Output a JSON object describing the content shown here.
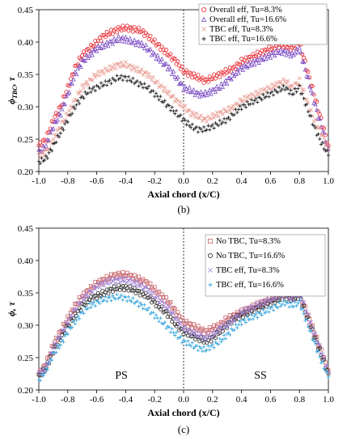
{
  "charts": [
    {
      "caption": "(b)",
      "ylabel_main": "ϕ",
      "ylabel_sub": "TBC",
      "ylabel_suffix": ", τ",
      "region_labels": []
    },
    {
      "caption": "(c)",
      "ylabel_main": "ϕ, τ",
      "ylabel_sub": "",
      "ylabel_suffix": "",
      "region_labels": [
        "PS",
        "SS"
      ]
    }
  ],
  "chart_data": [
    {
      "type": "scatter",
      "xlabel": "Axial chord (x/C)",
      "xlim": [
        -1.0,
        1.0
      ],
      "ylim": [
        0.2,
        0.45
      ],
      "xticks": [
        "-1.0",
        "-0.8",
        "-0.6",
        "-0.4",
        "-0.2",
        "0.0",
        "0.2",
        "0.4",
        "0.6",
        "0.8",
        "1.0"
      ],
      "yticks": [
        "0.20",
        "0.25",
        "0.30",
        "0.35",
        "0.40",
        "0.45"
      ],
      "grid": false,
      "legend_position": "top-right",
      "series": [
        {
          "name": "Overall eff, Tu=8.3%",
          "marker": "circle",
          "color": "#e8222a",
          "x": [
            -1.0,
            -0.95,
            -0.9,
            -0.85,
            -0.8,
            -0.75,
            -0.7,
            -0.65,
            -0.6,
            -0.55,
            -0.5,
            -0.45,
            -0.4,
            -0.35,
            -0.3,
            -0.25,
            -0.2,
            -0.15,
            -0.1,
            -0.05,
            0.0,
            0.05,
            0.1,
            0.15,
            0.2,
            0.25,
            0.3,
            0.35,
            0.4,
            0.45,
            0.5,
            0.55,
            0.6,
            0.65,
            0.7,
            0.75,
            0.8,
            0.85,
            0.9,
            0.95,
            1.0
          ],
          "y": [
            0.24,
            0.25,
            0.28,
            0.3,
            0.33,
            0.36,
            0.38,
            0.39,
            0.4,
            0.41,
            0.415,
            0.42,
            0.422,
            0.42,
            0.418,
            0.41,
            0.4,
            0.39,
            0.38,
            0.37,
            0.355,
            0.35,
            0.345,
            0.34,
            0.345,
            0.35,
            0.355,
            0.36,
            0.37,
            0.375,
            0.38,
            0.385,
            0.39,
            0.395,
            0.395,
            0.39,
            0.4,
            0.36,
            0.32,
            0.28,
            0.24
          ]
        },
        {
          "name": "Overall eff, Tu=16.6%",
          "marker": "triangle",
          "color": "#7a4bc4",
          "x": [
            -1.0,
            -0.95,
            -0.9,
            -0.85,
            -0.8,
            -0.75,
            -0.7,
            -0.65,
            -0.6,
            -0.55,
            -0.5,
            -0.45,
            -0.4,
            -0.35,
            -0.3,
            -0.25,
            -0.2,
            -0.15,
            -0.1,
            -0.05,
            0.0,
            0.05,
            0.1,
            0.15,
            0.2,
            0.25,
            0.3,
            0.35,
            0.4,
            0.45,
            0.5,
            0.55,
            0.6,
            0.65,
            0.7,
            0.75,
            0.8,
            0.85,
            0.9,
            0.95,
            1.0
          ],
          "y": [
            0.23,
            0.24,
            0.27,
            0.29,
            0.32,
            0.35,
            0.37,
            0.38,
            0.39,
            0.395,
            0.4,
            0.405,
            0.405,
            0.4,
            0.398,
            0.39,
            0.38,
            0.37,
            0.36,
            0.345,
            0.33,
            0.325,
            0.32,
            0.32,
            0.325,
            0.33,
            0.34,
            0.35,
            0.36,
            0.365,
            0.37,
            0.375,
            0.38,
            0.385,
            0.385,
            0.38,
            0.39,
            0.35,
            0.31,
            0.27,
            0.235
          ]
        },
        {
          "name": "TBC eff, Tu=8.3%",
          "marker": "x",
          "color": "#e89a90",
          "x": [
            -1.0,
            -0.95,
            -0.9,
            -0.85,
            -0.8,
            -0.75,
            -0.7,
            -0.65,
            -0.6,
            -0.55,
            -0.5,
            -0.45,
            -0.4,
            -0.35,
            -0.3,
            -0.25,
            -0.2,
            -0.15,
            -0.1,
            -0.05,
            0.0,
            0.05,
            0.1,
            0.15,
            0.2,
            0.25,
            0.3,
            0.35,
            0.4,
            0.45,
            0.5,
            0.55,
            0.6,
            0.65,
            0.7,
            0.75,
            0.8,
            0.85,
            0.9,
            0.95,
            1.0
          ],
          "y": [
            0.225,
            0.23,
            0.25,
            0.27,
            0.29,
            0.31,
            0.33,
            0.34,
            0.35,
            0.355,
            0.36,
            0.365,
            0.365,
            0.36,
            0.355,
            0.35,
            0.34,
            0.33,
            0.32,
            0.31,
            0.3,
            0.29,
            0.285,
            0.28,
            0.285,
            0.29,
            0.295,
            0.3,
            0.31,
            0.315,
            0.32,
            0.325,
            0.33,
            0.335,
            0.34,
            0.33,
            0.34,
            0.31,
            0.28,
            0.26,
            0.235
          ]
        },
        {
          "name": "TBC eff, Tu=16.6%",
          "marker": "plus",
          "color": "#222222",
          "x": [
            -1.0,
            -0.95,
            -0.9,
            -0.85,
            -0.8,
            -0.75,
            -0.7,
            -0.65,
            -0.6,
            -0.55,
            -0.5,
            -0.45,
            -0.4,
            -0.35,
            -0.3,
            -0.25,
            -0.2,
            -0.15,
            -0.1,
            -0.05,
            0.0,
            0.05,
            0.1,
            0.15,
            0.2,
            0.25,
            0.3,
            0.35,
            0.4,
            0.45,
            0.5,
            0.55,
            0.6,
            0.65,
            0.7,
            0.75,
            0.8,
            0.85,
            0.9,
            0.95,
            1.0
          ],
          "y": [
            0.215,
            0.22,
            0.24,
            0.26,
            0.28,
            0.3,
            0.315,
            0.325,
            0.33,
            0.335,
            0.34,
            0.345,
            0.345,
            0.34,
            0.335,
            0.33,
            0.32,
            0.31,
            0.3,
            0.29,
            0.28,
            0.27,
            0.265,
            0.265,
            0.27,
            0.275,
            0.28,
            0.29,
            0.3,
            0.305,
            0.31,
            0.315,
            0.32,
            0.325,
            0.33,
            0.32,
            0.33,
            0.3,
            0.27,
            0.245,
            0.225
          ]
        }
      ]
    },
    {
      "type": "scatter",
      "xlabel": "Axial chord (x/C)",
      "xlim": [
        -1.0,
        1.0
      ],
      "ylim": [
        0.2,
        0.45
      ],
      "xticks": [
        "-1.0",
        "-0.8",
        "-0.6",
        "-0.4",
        "-0.2",
        "0.0",
        "0.2",
        "0.4",
        "0.6",
        "0.8",
        "1.0"
      ],
      "yticks": [
        "0.20",
        "0.25",
        "0.30",
        "0.35",
        "0.40",
        "0.45"
      ],
      "grid": false,
      "legend_position": "top-right",
      "series": [
        {
          "name": "No TBC, Tu=8.3%",
          "marker": "square",
          "color": "#c9666a",
          "x": [
            -1.0,
            -0.95,
            -0.9,
            -0.85,
            -0.8,
            -0.75,
            -0.7,
            -0.65,
            -0.6,
            -0.55,
            -0.5,
            -0.45,
            -0.4,
            -0.35,
            -0.3,
            -0.25,
            -0.2,
            -0.15,
            -0.1,
            -0.05,
            0.0,
            0.05,
            0.1,
            0.15,
            0.2,
            0.25,
            0.3,
            0.35,
            0.4,
            0.45,
            0.5,
            0.55,
            0.6,
            0.65,
            0.7,
            0.75,
            0.8,
            0.85,
            0.9,
            0.95,
            1.0
          ],
          "y": [
            0.225,
            0.24,
            0.27,
            0.29,
            0.31,
            0.33,
            0.345,
            0.355,
            0.365,
            0.37,
            0.375,
            0.378,
            0.378,
            0.375,
            0.37,
            0.365,
            0.355,
            0.345,
            0.335,
            0.32,
            0.305,
            0.3,
            0.295,
            0.29,
            0.295,
            0.3,
            0.31,
            0.315,
            0.32,
            0.325,
            0.33,
            0.335,
            0.34,
            0.345,
            0.35,
            0.345,
            0.35,
            0.32,
            0.29,
            0.26,
            0.23
          ]
        },
        {
          "name": "No TBC, Tu=16.6%",
          "marker": "circle",
          "color": "#222222",
          "x": [
            -1.0,
            -0.95,
            -0.9,
            -0.85,
            -0.8,
            -0.75,
            -0.7,
            -0.65,
            -0.6,
            -0.55,
            -0.5,
            -0.45,
            -0.4,
            -0.35,
            -0.3,
            -0.25,
            -0.2,
            -0.15,
            -0.1,
            -0.05,
            0.0,
            0.05,
            0.1,
            0.15,
            0.2,
            0.25,
            0.3,
            0.35,
            0.4,
            0.45,
            0.5,
            0.55,
            0.6,
            0.65,
            0.7,
            0.75,
            0.8,
            0.85,
            0.9,
            0.95,
            1.0
          ],
          "y": [
            0.22,
            0.235,
            0.26,
            0.28,
            0.3,
            0.315,
            0.33,
            0.34,
            0.345,
            0.35,
            0.355,
            0.358,
            0.358,
            0.355,
            0.35,
            0.345,
            0.335,
            0.325,
            0.315,
            0.3,
            0.29,
            0.285,
            0.28,
            0.275,
            0.28,
            0.29,
            0.3,
            0.31,
            0.315,
            0.32,
            0.325,
            0.33,
            0.335,
            0.34,
            0.345,
            0.34,
            0.345,
            0.315,
            0.285,
            0.255,
            0.225
          ]
        },
        {
          "name": "TBC eff, Tu=8.3%",
          "marker": "x",
          "color": "#9f7fd6",
          "x": [
            -1.0,
            -0.95,
            -0.9,
            -0.85,
            -0.8,
            -0.75,
            -0.7,
            -0.65,
            -0.6,
            -0.55,
            -0.5,
            -0.45,
            -0.4,
            -0.35,
            -0.3,
            -0.25,
            -0.2,
            -0.15,
            -0.1,
            -0.05,
            0.0,
            0.05,
            0.1,
            0.15,
            0.2,
            0.25,
            0.3,
            0.35,
            0.4,
            0.45,
            0.5,
            0.55,
            0.6,
            0.65,
            0.7,
            0.75,
            0.8,
            0.85,
            0.9,
            0.95,
            1.0
          ],
          "y": [
            0.225,
            0.235,
            0.265,
            0.285,
            0.305,
            0.325,
            0.34,
            0.35,
            0.36,
            0.365,
            0.368,
            0.37,
            0.37,
            0.367,
            0.362,
            0.355,
            0.345,
            0.335,
            0.325,
            0.31,
            0.295,
            0.29,
            0.285,
            0.28,
            0.285,
            0.295,
            0.3,
            0.31,
            0.32,
            0.325,
            0.33,
            0.335,
            0.34,
            0.345,
            0.348,
            0.34,
            0.35,
            0.32,
            0.29,
            0.26,
            0.228
          ]
        },
        {
          "name": "TBC eff, Tu=16.6%",
          "marker": "plus",
          "color": "#3aa6de",
          "x": [
            -1.0,
            -0.95,
            -0.9,
            -0.85,
            -0.8,
            -0.75,
            -0.7,
            -0.65,
            -0.6,
            -0.55,
            -0.5,
            -0.45,
            -0.4,
            -0.35,
            -0.3,
            -0.25,
            -0.2,
            -0.15,
            -0.1,
            -0.05,
            0.0,
            0.05,
            0.1,
            0.15,
            0.2,
            0.25,
            0.3,
            0.35,
            0.4,
            0.45,
            0.5,
            0.55,
            0.6,
            0.65,
            0.7,
            0.75,
            0.8,
            0.85,
            0.9,
            0.95,
            1.0
          ],
          "y": [
            0.215,
            0.23,
            0.255,
            0.27,
            0.29,
            0.305,
            0.32,
            0.33,
            0.335,
            0.34,
            0.342,
            0.344,
            0.342,
            0.338,
            0.332,
            0.325,
            0.315,
            0.305,
            0.295,
            0.285,
            0.275,
            0.27,
            0.265,
            0.262,
            0.268,
            0.275,
            0.285,
            0.295,
            0.305,
            0.31,
            0.315,
            0.32,
            0.325,
            0.33,
            0.335,
            0.33,
            0.335,
            0.305,
            0.275,
            0.245,
            0.22
          ]
        }
      ]
    }
  ]
}
